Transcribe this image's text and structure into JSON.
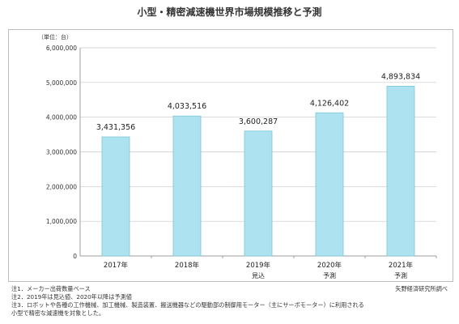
{
  "title": "小型・精密減速機世界市場規模推移と予測",
  "chart_data": {
    "type": "bar",
    "unit_label": "（単位：台）",
    "categories": [
      "2017年",
      "2018年",
      "2019年",
      "2020年",
      "2021年"
    ],
    "sub_labels": [
      "",
      "",
      "見込",
      "予測",
      "予測"
    ],
    "values": [
      3431356,
      4033516,
      3600287,
      4126402,
      4893834
    ],
    "value_labels": [
      "3,431,356",
      "4,033,516",
      "3,600,287",
      "4,126,402",
      "4,893,834"
    ],
    "y_ticks": [
      "0",
      "1,000,000",
      "2,000,000",
      "3,000,000",
      "4,000,000",
      "5,000,000",
      "6,000,000"
    ],
    "ylim": [
      0,
      6000000
    ],
    "grid": true,
    "bar_color": "#ade3f0",
    "bar_edge_color": "#7fc6d8"
  },
  "notes": [
    "注1．メーカー出荷数量ベース",
    "注2．2019年は見込値、2020年以降は予測値",
    "注3．ロボットや各種の工作機械、加工機械、製造装置、搬送機器などの駆動部の制御用モーター（主にサーボモーター）に利用される",
    "小型で精密な減速機を対象とした。"
  ],
  "source": "矢野経済研究所調べ"
}
